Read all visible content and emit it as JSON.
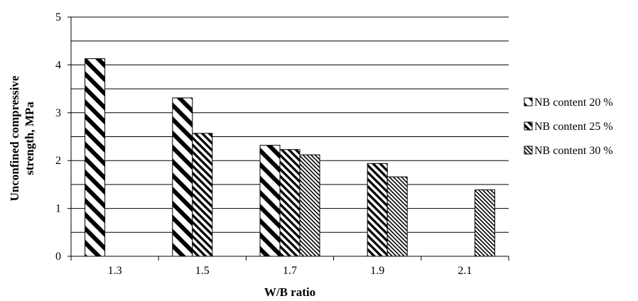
{
  "chart_data": {
    "type": "bar",
    "title": "",
    "xlabel": "W/B ratio",
    "ylabel_lines": [
      "Unconfined compressive",
      "strength, MPa"
    ],
    "categories": [
      "1.3",
      "1.5",
      "1.7",
      "1.9",
      "2.1"
    ],
    "ylim": [
      0,
      5
    ],
    "yticks": [
      "0",
      "1",
      "2",
      "3",
      "4",
      "5"
    ],
    "grid": "horizontal, every 0.5",
    "legend_position": "right",
    "series": [
      {
        "name": "NB content 20 %",
        "pattern": "thick-diagonal",
        "values": [
          4.13,
          3.31,
          2.32,
          null,
          null
        ]
      },
      {
        "name": "NB content 25 %",
        "pattern": "medium-diagonal",
        "values": [
          null,
          2.57,
          2.23,
          1.94,
          null
        ]
      },
      {
        "name": "NB content 30 %",
        "pattern": "fine-diagonal",
        "values": [
          null,
          null,
          2.12,
          1.66,
          1.39
        ]
      }
    ]
  }
}
